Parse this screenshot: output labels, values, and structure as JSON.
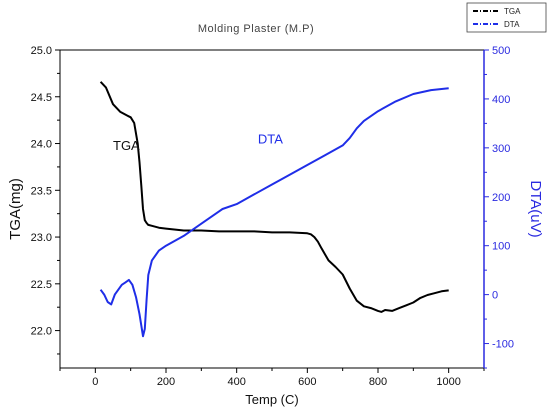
{
  "chart_data": {
    "type": "line",
    "title": "Molding Plaster (M.P)",
    "xlabel": "Temp (C)",
    "ylabel_left": "TGA(mg)",
    "ylabel_right": "DTA(uV)",
    "xlim": [
      -100,
      1100
    ],
    "ylim_left": [
      21.6,
      25.0
    ],
    "ylim_right": [
      -150,
      500
    ],
    "x_ticks": [
      0,
      200,
      400,
      600,
      800,
      1000
    ],
    "y_left_ticks": [
      "22.0",
      "22.5",
      "23.0",
      "23.5",
      "24.0",
      "24.5",
      "25.0"
    ],
    "y_right_ticks": [
      -100,
      0,
      100,
      200,
      300,
      400,
      500
    ],
    "grid": false,
    "legend_position": "top-right",
    "annotations": [
      {
        "text": "TGA",
        "x": 50,
        "y_left": 23.93
      },
      {
        "text": "DTA",
        "x": 460,
        "y_left": 24.0
      }
    ],
    "colors": {
      "tga": "#000000",
      "dta": "#1f2ee8",
      "right_axis": "#2a2ae0"
    },
    "series": [
      {
        "name": "TGA",
        "axis": "left",
        "x": [
          15,
          30,
          50,
          70,
          90,
          100,
          110,
          120,
          125,
          130,
          135,
          140,
          145,
          150,
          160,
          180,
          200,
          250,
          300,
          350,
          400,
          450,
          500,
          550,
          600,
          610,
          620,
          630,
          640,
          660,
          680,
          700,
          720,
          740,
          760,
          780,
          800,
          810,
          820,
          840,
          860,
          880,
          900,
          920,
          940,
          960,
          980,
          1000
        ],
        "y": [
          24.66,
          24.6,
          24.42,
          24.34,
          24.3,
          24.28,
          24.22,
          24.0,
          23.8,
          23.55,
          23.3,
          23.18,
          23.15,
          23.13,
          23.12,
          23.1,
          23.09,
          23.07,
          23.07,
          23.06,
          23.06,
          23.06,
          23.05,
          23.05,
          23.04,
          23.03,
          23.0,
          22.95,
          22.88,
          22.75,
          22.68,
          22.6,
          22.45,
          22.32,
          22.26,
          22.24,
          22.21,
          22.2,
          22.22,
          22.21,
          22.24,
          22.27,
          22.3,
          22.35,
          22.38,
          22.4,
          22.42,
          22.43
        ]
      },
      {
        "name": "DTA",
        "axis": "right",
        "x": [
          15,
          25,
          35,
          45,
          55,
          65,
          75,
          85,
          95,
          105,
          115,
          125,
          135,
          140,
          145,
          150,
          160,
          180,
          200,
          250,
          300,
          350,
          360,
          400,
          450,
          500,
          550,
          600,
          650,
          700,
          720,
          740,
          760,
          800,
          850,
          900,
          950,
          1000
        ],
        "y": [
          10,
          0,
          -15,
          -20,
          0,
          10,
          20,
          25,
          30,
          20,
          -5,
          -40,
          -85,
          -70,
          -10,
          40,
          70,
          90,
          100,
          120,
          145,
          170,
          175,
          185,
          205,
          225,
          245,
          265,
          285,
          305,
          320,
          340,
          355,
          375,
          395,
          410,
          418,
          422
        ]
      }
    ]
  }
}
